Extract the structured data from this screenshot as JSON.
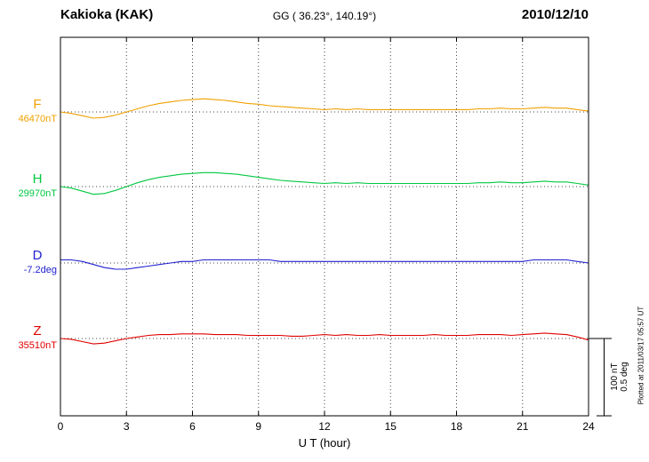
{
  "header": {
    "station": "Kakioka (KAK)",
    "coords": "GG ( 36.23°, 140.19°)",
    "date": "2010/12/10"
  },
  "axis": {
    "xlabel": "U T (hour)",
    "ticks": [
      0,
      3,
      6,
      9,
      12,
      15,
      18,
      21,
      24
    ]
  },
  "scale_bar": {
    "line1": "100 nT",
    "line2": "0.5 deg"
  },
  "footer_note": "Plotted at 2011/03/17 05:57 UT",
  "chart_data": {
    "type": "line",
    "title": "Kakioka (KAK) magnetogram 2010/12/10",
    "xlabel": "U T (hour)",
    "x_range_hours": [
      0,
      24
    ],
    "x_step_hours": 0.5,
    "x_ticks": [
      0,
      3,
      6,
      9,
      12,
      15,
      18,
      21,
      24
    ],
    "scale": {
      "nT_per_bar": 100,
      "deg_per_bar": 0.5
    },
    "series": [
      {
        "name": "F",
        "baseline_label": "46470nT",
        "baseline_value": 46470,
        "unit": "nT",
        "color": "#f0a000",
        "offsets": [
          0,
          -2,
          -5,
          -8,
          -7,
          -4,
          0,
          4,
          8,
          11,
          13,
          15,
          16,
          17,
          16,
          15,
          13,
          11,
          10,
          8,
          7,
          6,
          5,
          4,
          3,
          4,
          3,
          4,
          3,
          3,
          3,
          3,
          3,
          3,
          3,
          3,
          3,
          3,
          4,
          4,
          5,
          4,
          4,
          5,
          6,
          5,
          5,
          3,
          1
        ]
      },
      {
        "name": "H",
        "baseline_label": "29970nT",
        "baseline_value": 29970,
        "unit": "nT",
        "color": "#00c840",
        "offsets": [
          0,
          -2,
          -6,
          -10,
          -9,
          -5,
          0,
          5,
          9,
          12,
          14,
          16,
          17,
          18,
          18,
          17,
          16,
          14,
          12,
          10,
          8,
          7,
          6,
          5,
          4,
          5,
          4,
          5,
          4,
          4,
          4,
          4,
          4,
          4,
          4,
          4,
          4,
          4,
          5,
          5,
          6,
          5,
          5,
          6,
          7,
          6,
          6,
          4,
          2
        ]
      },
      {
        "name": "D",
        "baseline_label": "-7.2deg",
        "baseline_value": -7.2,
        "unit": "deg",
        "color": "#2020d0",
        "offsets": [
          0.02,
          0.02,
          0.01,
          -0.01,
          -0.03,
          -0.04,
          -0.04,
          -0.03,
          -0.02,
          -0.01,
          0,
          0.01,
          0.01,
          0.02,
          0.02,
          0.02,
          0.02,
          0.02,
          0.02,
          0.02,
          0.01,
          0.01,
          0.01,
          0.01,
          0.01,
          0.01,
          0.01,
          0.01,
          0.01,
          0.01,
          0.01,
          0.01,
          0.01,
          0.01,
          0.01,
          0.01,
          0.01,
          0.01,
          0.01,
          0.01,
          0.01,
          0.01,
          0.01,
          0.02,
          0.02,
          0.02,
          0.02,
          0.01,
          0
        ]
      },
      {
        "name": "Z",
        "baseline_label": "35510nT",
        "baseline_value": 35510,
        "unit": "nT",
        "color": "#e00000",
        "offsets": [
          0,
          -1,
          -4,
          -7,
          -6,
          -3,
          0,
          2,
          4,
          5,
          5,
          6,
          6,
          6,
          5,
          5,
          5,
          4,
          4,
          4,
          4,
          3,
          3,
          4,
          5,
          4,
          5,
          4,
          4,
          5,
          4,
          4,
          4,
          4,
          5,
          4,
          4,
          4,
          5,
          5,
          5,
          4,
          5,
          6,
          7,
          6,
          5,
          2,
          -2
        ]
      }
    ]
  }
}
